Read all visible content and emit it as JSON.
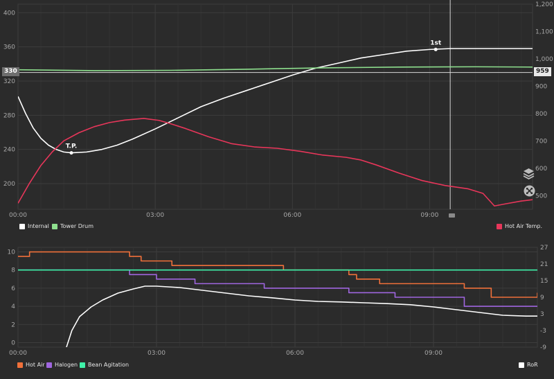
{
  "colors": {
    "internal": "#ffffff",
    "tower_drum": "#8ee08e",
    "hot_air_temp": "#e8365a",
    "hot_air": "#f0703a",
    "halogen": "#a066e0",
    "bean_agitation": "#3ff0a8",
    "ror": "#ffffff"
  },
  "top": {
    "left_badge": "330",
    "right_badge": "959",
    "legend": {
      "internal": "Internal",
      "tower_drum": "Tower Drum",
      "hot_air_temp": "Hot Air Temp."
    },
    "annotations": {
      "tp": "T.P.",
      "first": "1st"
    },
    "icons": [
      "layers-icon",
      "expand-icon"
    ]
  },
  "bottom": {
    "legend": {
      "hot_air": "Hot Air",
      "halogen": "Halogen",
      "bean_agitation": "Bean Agitation",
      "ror": "RoR"
    }
  },
  "chart_data": [
    {
      "type": "line",
      "x_unit": "mm:ss",
      "xlim": [
        0,
        675
      ],
      "x_ticks": [
        "00:00",
        "03:00",
        "06:00",
        "09:00"
      ],
      "y_left": {
        "ylim": [
          170,
          410
        ],
        "ticks": [
          "200",
          "240",
          "280",
          "320",
          "360",
          "400"
        ]
      },
      "y_right": {
        "ylim": [
          450,
          1200
        ],
        "ticks": [
          "500",
          "600",
          "700",
          "800",
          "900",
          "1,000",
          "1,100",
          "1,200"
        ]
      },
      "grid": true,
      "legend": "bottom",
      "reference_left": 330,
      "reference_right": 959,
      "cursor_x": 567,
      "series": [
        {
          "name": "Internal",
          "axis": "left",
          "x": [
            0,
            10,
            20,
            30,
            40,
            50,
            60,
            70,
            90,
            110,
            130,
            150,
            180,
            210,
            240,
            270,
            300,
            330,
            360,
            390,
            420,
            450,
            480,
            510,
            540,
            567,
            600,
            640,
            675
          ],
          "y": [
            302,
            282,
            265,
            253,
            245,
            240,
            237,
            236,
            237,
            240,
            245,
            252,
            264,
            277,
            290,
            300,
            309,
            318,
            327,
            335,
            341,
            347,
            351,
            355,
            357,
            358,
            358,
            358,
            358
          ]
        },
        {
          "name": "Tower Drum",
          "axis": "right",
          "x": [
            0,
            100,
            200,
            300,
            400,
            500,
            600,
            675
          ],
          "y": [
            960,
            957,
            958,
            962,
            967,
            970,
            971,
            970
          ]
        },
        {
          "name": "Hot Air Temp.",
          "axis": "right",
          "x": [
            0,
            15,
            30,
            45,
            60,
            80,
            100,
            120,
            140,
            165,
            185,
            200,
            220,
            250,
            280,
            310,
            340,
            370,
            400,
            430,
            450,
            470,
            500,
            530,
            560,
            590,
            610,
            625,
            640,
            660,
            675
          ],
          "y": [
            472,
            545,
            610,
            660,
            700,
            730,
            752,
            767,
            776,
            782,
            775,
            763,
            745,
            715,
            690,
            678,
            673,
            662,
            648,
            640,
            630,
            612,
            582,
            555,
            537,
            525,
            508,
            462,
            470,
            480,
            485
          ]
        }
      ],
      "annotations": [
        {
          "label": "T.P.",
          "x": 70,
          "y": 236
        },
        {
          "label": "1st",
          "x": 548,
          "y": 357
        }
      ]
    },
    {
      "type": "line",
      "x_unit": "mm:ss",
      "xlim": [
        0,
        675
      ],
      "x_ticks": [
        "00:00",
        "03:00",
        "06:00",
        "09:00"
      ],
      "y_left": {
        "ylim": [
          -0.5,
          10.5
        ],
        "ticks": [
          "0",
          "2",
          "4",
          "6",
          "8",
          "10"
        ]
      },
      "y_right": {
        "ylim": [
          -9,
          27
        ],
        "ticks": [
          "-9",
          "-3",
          "3",
          "9",
          "15",
          "21",
          "27"
        ]
      },
      "grid": true,
      "legend": "bottom",
      "series": [
        {
          "name": "Hot Air",
          "axis": "left",
          "step": true,
          "x": [
            0,
            15,
            145,
            160,
            200,
            345,
            430,
            440,
            470,
            580,
            615,
            675
          ],
          "y": [
            9.5,
            10,
            9.5,
            9,
            8.5,
            8,
            7.5,
            7,
            6.5,
            6,
            5,
            5.5
          ]
        },
        {
          "name": "Halogen",
          "axis": "left",
          "step": true,
          "x": [
            0,
            145,
            180,
            230,
            320,
            430,
            490,
            580,
            675
          ],
          "y": [
            8,
            7.5,
            7,
            6.5,
            6,
            5.5,
            5,
            4,
            4
          ]
        },
        {
          "name": "Bean Agitation",
          "axis": "left",
          "step": true,
          "x": [
            0,
            675
          ],
          "y": [
            8,
            8
          ]
        },
        {
          "name": "RoR",
          "axis": "right",
          "x": [
            63,
            70,
            80,
            95,
            110,
            130,
            150,
            165,
            180,
            210,
            240,
            270,
            300,
            330,
            360,
            390,
            420,
            450,
            480,
            510,
            540,
            570,
            600,
            630,
            660,
            675
          ],
          "y": [
            -9,
            -3,
            2,
            5.5,
            8,
            10.5,
            12,
            13,
            13,
            12.5,
            11.5,
            10.5,
            9.5,
            8.8,
            8,
            7.5,
            7.3,
            7,
            6.7,
            6.3,
            5.5,
            4.5,
            3.5,
            2.5,
            2.2,
            2.2
          ]
        }
      ]
    }
  ]
}
